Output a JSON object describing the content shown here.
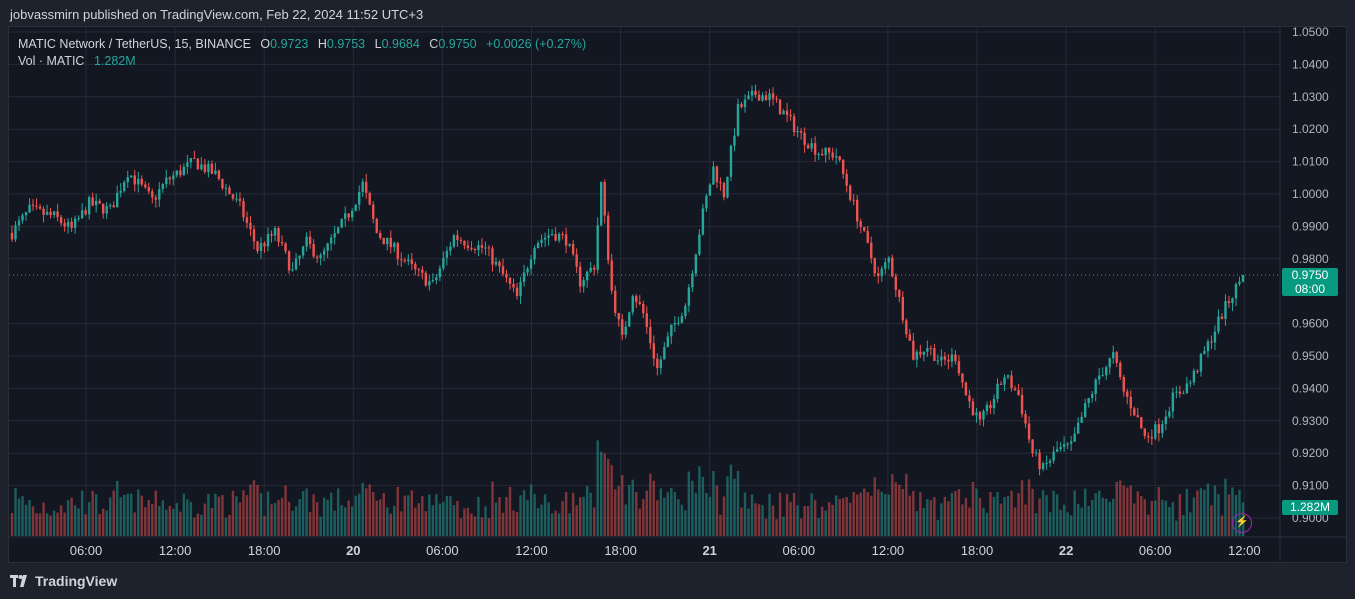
{
  "header": {
    "text": "jobvassmirn published on TradingView.com, Feb 22, 2024 11:52 UTC+3"
  },
  "legend": {
    "symbol": "MATIC Network / TetherUS, 15, BINANCE",
    "o_label": "O",
    "o": "0.9723",
    "h_label": "H",
    "h": "0.9753",
    "l_label": "L",
    "l": "0.9684",
    "c_label": "C",
    "c": "0.9750",
    "change": "+0.0026 (+0.27%)",
    "vol_label": "Vol · MATIC",
    "vol": "1.282M"
  },
  "price_tag": {
    "price": "0.9750",
    "countdown": "08:00"
  },
  "volume_tag": "1.282M",
  "footer": {
    "brand": "TradingView"
  },
  "colors": {
    "up": "#26a69a",
    "down": "#ef5350",
    "background": "#131722",
    "grid": "#2a2e39"
  },
  "icons": {
    "brand": "tradingview-logo-icon",
    "alert": "lightning-icon"
  },
  "chart_data": {
    "type": "candlestick",
    "title": "MATIC Network / TetherUS, 15, BINANCE",
    "y_ticks": [
      "1.0500",
      "1.0400",
      "1.0300",
      "1.0200",
      "1.0100",
      "1.0000",
      "0.9900",
      "0.9800",
      "0.9600",
      "0.9500",
      "0.9400",
      "0.9300",
      "0.9200",
      "0.9100",
      "0.9000"
    ],
    "ylim": [
      0.9,
      1.05
    ],
    "x_ticks": [
      {
        "label": "06:00",
        "bold": false
      },
      {
        "label": "12:00",
        "bold": false
      },
      {
        "label": "18:00",
        "bold": false
      },
      {
        "label": "20",
        "bold": true
      },
      {
        "label": "06:00",
        "bold": false
      },
      {
        "label": "12:00",
        "bold": false
      },
      {
        "label": "18:00",
        "bold": false
      },
      {
        "label": "21",
        "bold": true
      },
      {
        "label": "06:00",
        "bold": false
      },
      {
        "label": "12:00",
        "bold": false
      },
      {
        "label": "18:00",
        "bold": false
      },
      {
        "label": "22",
        "bold": true
      },
      {
        "label": "06:00",
        "bold": false
      },
      {
        "label": "12:00",
        "bold": false
      }
    ],
    "last_price": 0.975,
    "path": [
      [
        0,
        0.988
      ],
      [
        5,
        0.995
      ],
      [
        12,
        0.993
      ],
      [
        17,
        0.989
      ],
      [
        22,
        0.997
      ],
      [
        28,
        0.995
      ],
      [
        33,
        1.007
      ],
      [
        40,
        0.998
      ],
      [
        44,
        1.004
      ],
      [
        52,
        1.01
      ],
      [
        58,
        1.006
      ],
      [
        65,
        0.996
      ],
      [
        70,
        0.983
      ],
      [
        75,
        0.988
      ],
      [
        80,
        0.976
      ],
      [
        84,
        0.985
      ],
      [
        88,
        0.98
      ],
      [
        92,
        0.987
      ],
      [
        96,
        0.994
      ],
      [
        100,
        1.003
      ],
      [
        104,
        0.988
      ],
      [
        108,
        0.984
      ],
      [
        115,
        0.976
      ],
      [
        120,
        0.972
      ],
      [
        126,
        0.987
      ],
      [
        130,
        0.985
      ],
      [
        135,
        0.983
      ],
      [
        140,
        0.975
      ],
      [
        144,
        0.968
      ],
      [
        149,
        0.985
      ],
      [
        154,
        0.988
      ],
      [
        158,
        0.986
      ],
      [
        162,
        0.973
      ],
      [
        166,
        0.978
      ],
      [
        168,
        1.003
      ],
      [
        171,
        0.97
      ],
      [
        174,
        0.955
      ],
      [
        177,
        0.97
      ],
      [
        180,
        0.963
      ],
      [
        184,
        0.946
      ],
      [
        188,
        0.958
      ],
      [
        192,
        0.966
      ],
      [
        197,
        0.994
      ],
      [
        200,
        1.008
      ],
      [
        203,
        1.0
      ],
      [
        207,
        1.026
      ],
      [
        212,
        1.031
      ],
      [
        216,
        1.03
      ],
      [
        220,
        1.025
      ],
      [
        225,
        1.018
      ],
      [
        230,
        1.013
      ],
      [
        235,
        1.012
      ],
      [
        238,
        1.003
      ],
      [
        242,
        0.99
      ],
      [
        247,
        0.974
      ],
      [
        250,
        0.98
      ],
      [
        254,
        0.963
      ],
      [
        257,
        0.95
      ],
      [
        261,
        0.953
      ],
      [
        265,
        0.948
      ],
      [
        269,
        0.95
      ],
      [
        272,
        0.938
      ],
      [
        276,
        0.929
      ],
      [
        279,
        0.935
      ],
      [
        283,
        0.944
      ],
      [
        287,
        0.938
      ],
      [
        291,
        0.92
      ],
      [
        294,
        0.915
      ],
      [
        298,
        0.921
      ],
      [
        302,
        0.922
      ],
      [
        306,
        0.934
      ],
      [
        310,
        0.944
      ],
      [
        314,
        0.95
      ],
      [
        317,
        0.939
      ],
      [
        320,
        0.933
      ],
      [
        323,
        0.925
      ],
      [
        327,
        0.928
      ],
      [
        331,
        0.937
      ],
      [
        336,
        0.942
      ],
      [
        340,
        0.951
      ],
      [
        345,
        0.963
      ],
      [
        349,
        0.971
      ],
      [
        351,
        0.975
      ]
    ],
    "volume_note": "volume histogram bars coloured by candle direction, last volume 1.282M"
  }
}
